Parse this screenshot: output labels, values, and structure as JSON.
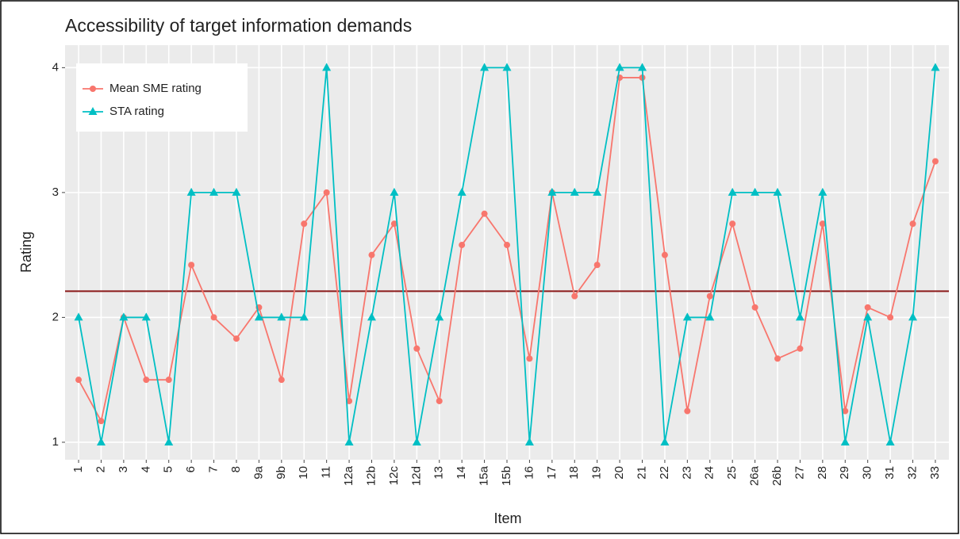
{
  "chart_data": {
    "type": "line",
    "title": "Accessibility of target information demands",
    "x_label": "Item",
    "y_label": "Rating",
    "categories": [
      "1",
      "2",
      "3",
      "4",
      "5",
      "6",
      "7",
      "8",
      "9a",
      "9b",
      "10",
      "11",
      "12a",
      "12b",
      "12c",
      "12d",
      "13",
      "14",
      "15a",
      "15b",
      "16",
      "17",
      "18",
      "19",
      "20",
      "21",
      "22",
      "23",
      "24",
      "25",
      "26a",
      "26b",
      "27",
      "28",
      "29",
      "30",
      "31",
      "32",
      "33"
    ],
    "series": [
      {
        "name": "Mean SME rating",
        "color": "#f8766d",
        "marker": "circle",
        "values": [
          1.5,
          1.17,
          2,
          1.5,
          1.5,
          2.42,
          2,
          1.83,
          2.08,
          1.5,
          2.75,
          3,
          1.33,
          2.5,
          2.75,
          1.75,
          1.33,
          2.58,
          2.83,
          2.58,
          1.67,
          3,
          2.17,
          2.42,
          3.92,
          3.92,
          2.5,
          1.25,
          2.17,
          2.75,
          2.08,
          1.67,
          1.75,
          2.75,
          1.25,
          2.08,
          2,
          2.75,
          3.25
        ]
      },
      {
        "name": "STA rating",
        "color": "#00bfc4",
        "marker": "triangle",
        "values": [
          2,
          1,
          2,
          2,
          1,
          3,
          3,
          3,
          2,
          2,
          2,
          4,
          1,
          2,
          3,
          1,
          2,
          3,
          4,
          4,
          1,
          3,
          3,
          3,
          4,
          4,
          1,
          2,
          2,
          3,
          3,
          3,
          2,
          3,
          1,
          2,
          1,
          2,
          4
        ]
      }
    ],
    "hline": {
      "value": 2.21,
      "color": "#8b1a1a"
    },
    "ylim": [
      0.86,
      4.18
    ],
    "yticks": [
      1,
      2,
      3,
      4
    ],
    "grid": true,
    "legend": "top-left"
  }
}
